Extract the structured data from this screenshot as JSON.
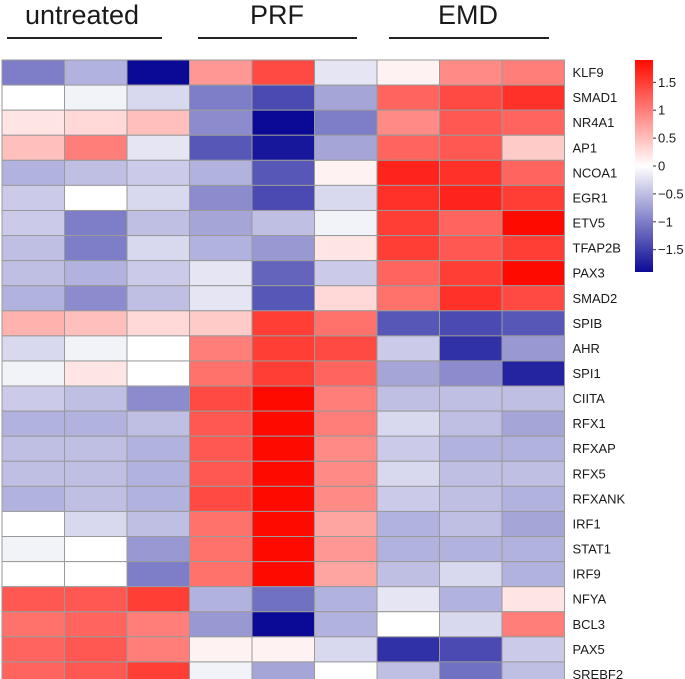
{
  "chart_data": {
    "type": "heatmap",
    "title": "",
    "column_groups": [
      {
        "label": "untreated",
        "columns": 3
      },
      {
        "label": "PRF",
        "columns": 3
      },
      {
        "label": "EMD",
        "columns": 3
      }
    ],
    "rows": [
      "KLF9",
      "SMAD1",
      "NR4A1",
      "AP1",
      "NCOA1",
      "EGR1",
      "ETV5",
      "TFAP2B",
      "PAX3",
      "SMAD2",
      "SPIB",
      "AHR",
      "SPI1",
      "CIITA",
      "RFX1",
      "RFXAP",
      "RFX5",
      "RFXANK",
      "IRF1",
      "STAT1",
      "IRF9",
      "NFYA",
      "BCL3",
      "PAX5",
      "SREBF2"
    ],
    "values": [
      [
        -1.0,
        -0.6,
        -1.9,
        0.8,
        1.4,
        -0.2,
        0.1,
        0.9,
        1.0
      ],
      [
        0.0,
        -0.1,
        -0.3,
        -1.0,
        -1.4,
        -0.7,
        1.2,
        1.4,
        1.6
      ],
      [
        0.2,
        0.3,
        0.5,
        -0.9,
        -2.0,
        -1.0,
        0.9,
        1.3,
        1.2
      ],
      [
        0.5,
        1.0,
        -0.2,
        -1.3,
        -1.8,
        -0.7,
        1.2,
        1.3,
        0.4
      ],
      [
        -0.6,
        -0.5,
        -0.4,
        -0.6,
        -1.3,
        0.1,
        1.7,
        1.6,
        1.2
      ],
      [
        -0.4,
        0.0,
        -0.3,
        -0.9,
        -1.4,
        -0.3,
        1.6,
        1.7,
        1.5
      ],
      [
        -0.4,
        -1.0,
        -0.5,
        -0.7,
        -0.5,
        -0.1,
        1.5,
        1.2,
        1.9
      ],
      [
        -0.5,
        -1.0,
        -0.3,
        -0.6,
        -0.8,
        0.2,
        1.5,
        1.3,
        1.5
      ],
      [
        -0.5,
        -0.6,
        -0.4,
        -0.2,
        -1.2,
        -0.4,
        1.2,
        1.5,
        1.9
      ],
      [
        -0.6,
        -0.9,
        -0.5,
        -0.2,
        -1.3,
        0.3,
        1.1,
        1.6,
        1.4
      ],
      [
        0.6,
        0.5,
        0.3,
        0.4,
        1.5,
        1.1,
        -1.3,
        -1.4,
        -1.3
      ],
      [
        -0.3,
        -0.1,
        0.0,
        1.0,
        1.5,
        1.4,
        -0.4,
        -1.6,
        -0.8
      ],
      [
        -0.1,
        0.2,
        0.0,
        1.1,
        1.5,
        1.2,
        -0.7,
        -0.9,
        -1.7
      ],
      [
        -0.4,
        -0.5,
        -0.9,
        1.4,
        1.9,
        1.0,
        -0.5,
        -0.5,
        -0.5
      ],
      [
        -0.6,
        -0.6,
        -0.5,
        1.3,
        1.9,
        1.0,
        -0.3,
        -0.5,
        -0.7
      ],
      [
        -0.5,
        -0.5,
        -0.6,
        1.3,
        1.9,
        0.9,
        -0.4,
        -0.6,
        -0.6
      ],
      [
        -0.5,
        -0.5,
        -0.6,
        1.3,
        1.9,
        0.9,
        -0.3,
        -0.5,
        -0.5
      ],
      [
        -0.6,
        -0.5,
        -0.6,
        1.4,
        1.9,
        0.9,
        -0.4,
        -0.5,
        -0.6
      ],
      [
        0.0,
        -0.3,
        -0.5,
        1.1,
        1.9,
        0.7,
        -0.6,
        -0.5,
        -0.7
      ],
      [
        -0.1,
        0.0,
        -0.8,
        1.1,
        1.9,
        0.8,
        -0.6,
        -0.6,
        -0.6
      ],
      [
        0.0,
        0.0,
        -1.0,
        1.1,
        1.9,
        0.7,
        -0.5,
        -0.3,
        -0.6
      ],
      [
        1.3,
        1.3,
        1.5,
        -0.6,
        -1.1,
        -0.6,
        -0.2,
        -0.6,
        0.2
      ],
      [
        1.1,
        1.2,
        1.0,
        -0.8,
        -1.9,
        -0.6,
        0.0,
        -0.3,
        1.0
      ],
      [
        1.2,
        1.3,
        1.0,
        0.1,
        0.1,
        -0.3,
        -1.6,
        -1.4,
        -0.4
      ],
      [
        1.2,
        1.3,
        1.5,
        -0.1,
        -0.7,
        0.0,
        -0.5,
        -1.1,
        -0.5
      ]
    ],
    "color_scale": {
      "min": -1.9,
      "max": 1.9,
      "low_color": "#0a0a96",
      "mid_color": "#ffffff",
      "high_color": "#ff0a00",
      "ticks": [
        1.5,
        1,
        0.5,
        0,
        -0.5,
        -1,
        -1.5
      ],
      "tick_labels": [
        "1.5",
        "1",
        "0.5",
        "0",
        "−0.5",
        "−1",
        "−1.5"
      ]
    }
  }
}
